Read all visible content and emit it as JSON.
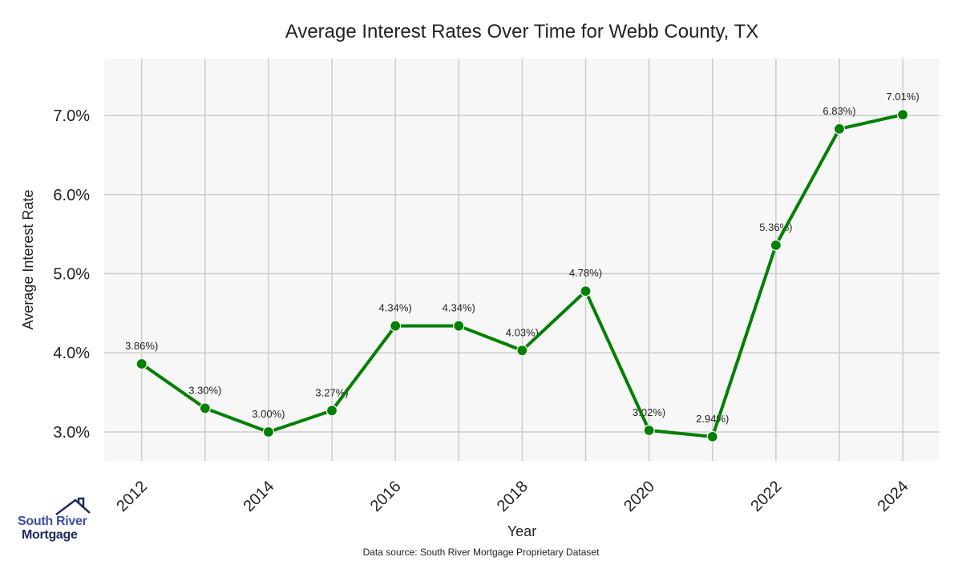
{
  "chart_data": {
    "type": "line",
    "title": "Average Interest Rates Over Time for Webb County, TX",
    "xlabel": "Year",
    "ylabel": "Average Interest Rate",
    "x": [
      2012,
      2013,
      2014,
      2015,
      2016,
      2017,
      2018,
      2019,
      2020,
      2021,
      2022,
      2023,
      2024
    ],
    "values": [
      3.86,
      3.3,
      3.0,
      3.27,
      4.34,
      4.34,
      4.03,
      4.78,
      3.02,
      2.94,
      5.36,
      6.83,
      7.01
    ],
    "data_labels": [
      "3.86%)",
      "3.30%)",
      "3.00%)",
      "3.27%)",
      "4.34%)",
      "4.34%)",
      "4.03%)",
      "4.78%)",
      "3.02%)",
      "2.94%)",
      "5.36%)",
      "6.83%)",
      "7.01%)"
    ],
    "xticks": [
      2012,
      2013,
      2014,
      2015,
      2016,
      2017,
      2018,
      2019,
      2020,
      2021,
      2022,
      2023,
      2024
    ],
    "xtick_labels": [
      "2012",
      "2014",
      "2016",
      "2018",
      "2020",
      "2022",
      "2024"
    ],
    "xtick_label_values": [
      2012,
      2014,
      2016,
      2018,
      2020,
      2022,
      2024
    ],
    "yticks": [
      3,
      4,
      5,
      6,
      7
    ],
    "ytick_labels": [
      "3.0%",
      "4.0%",
      "5.0%",
      "6.0%",
      "7.0%"
    ],
    "xlim": [
      2011.41,
      2024.58
    ],
    "ylim": [
      2.635,
      7.72
    ],
    "grid": true,
    "line_color": "#008000",
    "background": "#f7f7f7",
    "footnote": "Data source: South River Mortgage Proprietary Dataset"
  },
  "logo": {
    "line1": "South River",
    "line2": "Mortgage"
  }
}
